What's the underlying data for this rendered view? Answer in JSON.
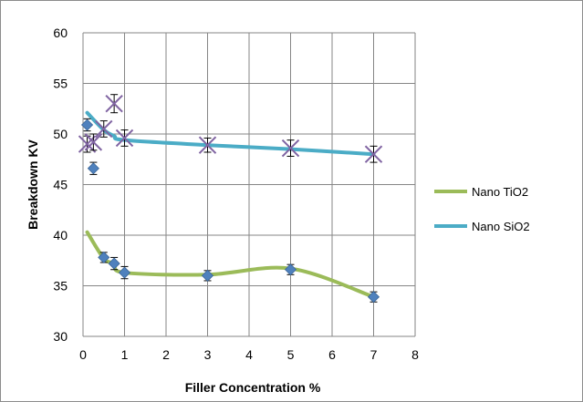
{
  "chart_data": {
    "type": "scatter",
    "title": "",
    "xlabel": "Filler Concentration %",
    "ylabel": "Breakdown KV",
    "xlim": [
      0,
      8
    ],
    "ylim": [
      30,
      60
    ],
    "xticks": [
      0,
      1,
      2,
      3,
      4,
      5,
      6,
      7,
      8
    ],
    "yticks": [
      30,
      35,
      40,
      45,
      50,
      55,
      60
    ],
    "grid": "both",
    "legend_position": "right",
    "series": [
      {
        "name": "Nano TiO2",
        "color": "#9bbb59",
        "marker_color": "#4f81bd",
        "marker": "diamond",
        "curve_x": [
          0.1,
          0.5,
          0.75,
          1,
          3,
          5,
          7
        ],
        "curve_y": [
          40.3,
          37.7,
          37.2,
          36.3,
          36.1,
          36.7,
          33.9
        ],
        "points": [
          {
            "x": 0.1,
            "y": 50.9,
            "err": 0.6
          },
          {
            "x": 0.25,
            "y": 46.6,
            "err": 0.6
          },
          {
            "x": 0.5,
            "y": 37.8,
            "err": 0.5
          },
          {
            "x": 0.75,
            "y": 37.2,
            "err": 0.6
          },
          {
            "x": 1,
            "y": 36.3,
            "err": 0.6
          },
          {
            "x": 3,
            "y": 36.0,
            "err": 0.5
          },
          {
            "x": 5,
            "y": 36.6,
            "err": 0.5
          },
          {
            "x": 7,
            "y": 33.9,
            "err": 0.5
          }
        ]
      },
      {
        "name": "Nano SiO2",
        "color": "#4bacc6",
        "marker_color": "#8064a2",
        "marker": "x",
        "curve_x": [
          0.1,
          0.5,
          0.75,
          1,
          3,
          5,
          7
        ],
        "curve_y": [
          52.1,
          50.4,
          49.8,
          49.4,
          48.9,
          48.5,
          48.0
        ],
        "points": [
          {
            "x": 0.1,
            "y": 49.0,
            "err": 0.8
          },
          {
            "x": 0.25,
            "y": 49.2,
            "err": 0.8
          },
          {
            "x": 0.5,
            "y": 50.5,
            "err": 0.8
          },
          {
            "x": 0.75,
            "y": 53.0,
            "err": 0.9
          },
          {
            "x": 1,
            "y": 49.6,
            "err": 0.8
          },
          {
            "x": 3,
            "y": 48.9,
            "err": 0.7
          },
          {
            "x": 5,
            "y": 48.6,
            "err": 0.8
          },
          {
            "x": 7,
            "y": 48.0,
            "err": 0.8
          }
        ]
      }
    ]
  }
}
